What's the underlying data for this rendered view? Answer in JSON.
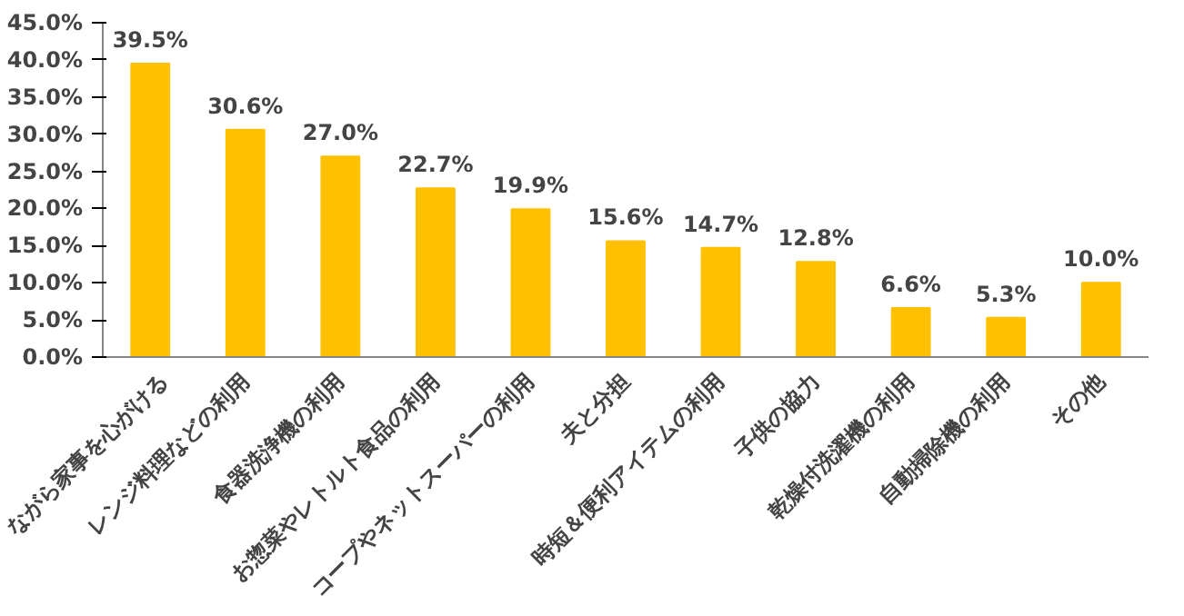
{
  "chart_data": {
    "type": "bar",
    "categories": [
      "ながら家事を心がける",
      "レンジ料理などの利用",
      "食器洗浄機の利用",
      "お惣菜やレトルト食品の利用",
      "コープやネットスーパーの利用",
      "夫と分担",
      "時短＆便利アイテムの利用",
      "子供の協力",
      "乾燥付洗濯機の利用",
      "自動掃除機の利用",
      "その他"
    ],
    "values": [
      39.5,
      30.6,
      27.0,
      22.7,
      19.9,
      15.6,
      14.7,
      12.8,
      6.6,
      5.3,
      10.0
    ],
    "value_labels": [
      "39.5%",
      "30.6%",
      "27.0%",
      "22.7%",
      "19.9%",
      "15.6%",
      "14.7%",
      "12.8%",
      "6.6%",
      "5.3%",
      "10.0%"
    ],
    "color": "#ffc000",
    "ylim": [
      0,
      45
    ],
    "yticks": [
      {
        "value": 0,
        "label": "0.0%"
      },
      {
        "value": 5,
        "label": "5.0%"
      },
      {
        "value": 10,
        "label": "10.0%"
      },
      {
        "value": 15,
        "label": "15.0%"
      },
      {
        "value": 20,
        "label": "20.0%"
      },
      {
        "value": 25,
        "label": "25.0%"
      },
      {
        "value": 30,
        "label": "30.0%"
      },
      {
        "value": 35,
        "label": "35.0%"
      },
      {
        "value": 40,
        "label": "40.0%"
      },
      {
        "value": 45,
        "label": "45.0%"
      }
    ],
    "grid": false
  }
}
